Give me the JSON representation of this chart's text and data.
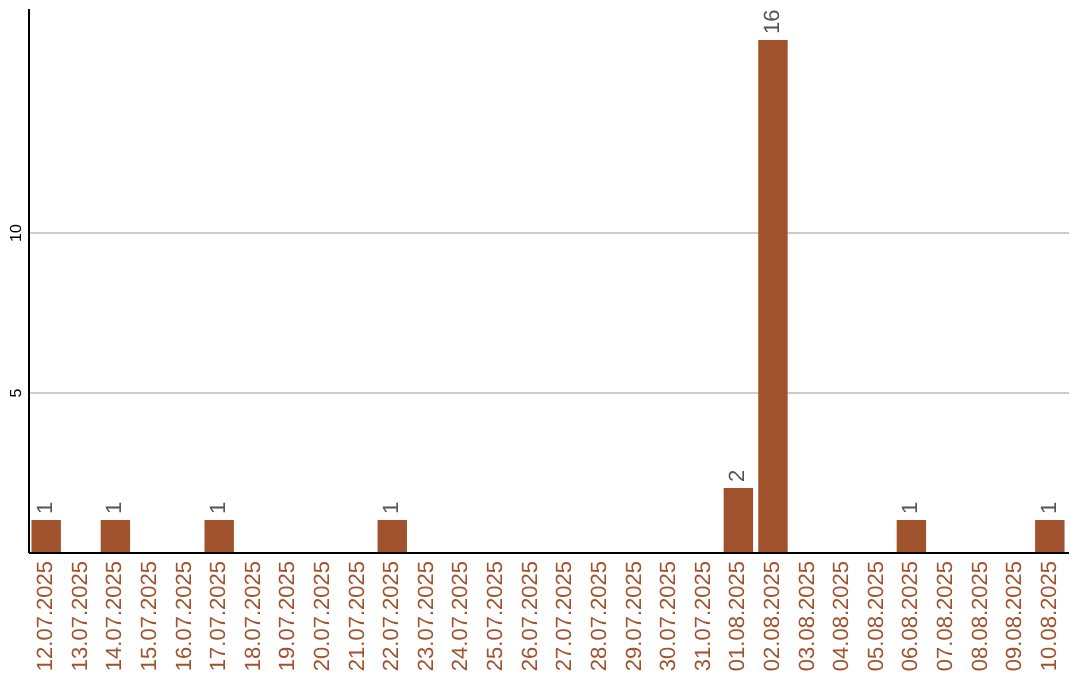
{
  "chart_data": {
    "type": "bar",
    "categories": [
      "12.07.2025",
      "13.07.2025",
      "14.07.2025",
      "15.07.2025",
      "16.07.2025",
      "17.07.2025",
      "18.07.2025",
      "19.07.2025",
      "20.07.2025",
      "21.07.2025",
      "22.07.2025",
      "23.07.2025",
      "24.07.2025",
      "25.07.2025",
      "26.07.2025",
      "27.07.2025",
      "28.07.2025",
      "29.07.2025",
      "30.07.2025",
      "31.07.2025",
      "01.08.2025",
      "02.08.2025",
      "03.08.2025",
      "04.08.2025",
      "05.08.2025",
      "06.08.2025",
      "07.08.2025",
      "08.08.2025",
      "09.08.2025",
      "10.08.2025"
    ],
    "values": [
      1,
      0,
      1,
      0,
      0,
      1,
      0,
      0,
      0,
      0,
      1,
      0,
      0,
      0,
      0,
      0,
      0,
      0,
      0,
      0,
      2,
      16,
      0,
      0,
      0,
      1,
      0,
      0,
      0,
      1
    ],
    "value_labels": [
      "1",
      null,
      "1",
      null,
      null,
      "1",
      null,
      null,
      null,
      null,
      "1",
      null,
      null,
      null,
      null,
      null,
      null,
      null,
      null,
      null,
      "2",
      "16",
      null,
      null,
      null,
      "1",
      null,
      null,
      null,
      "1"
    ],
    "color": "#a0522d",
    "ylim": [
      0,
      17
    ],
    "yticks": [
      5,
      10
    ],
    "grid": "y"
  }
}
